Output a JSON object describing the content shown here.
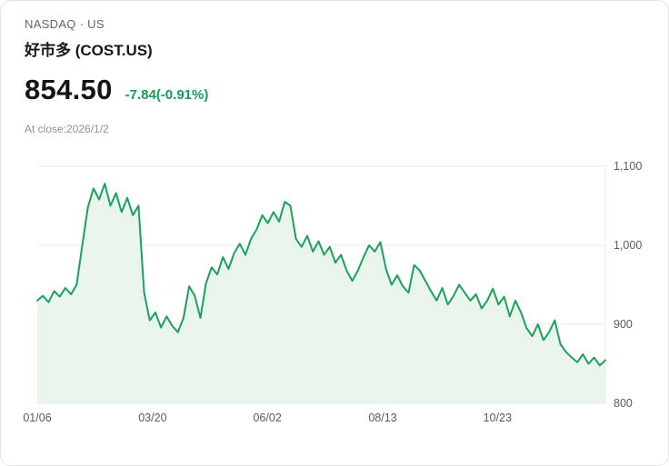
{
  "header": {
    "exchange": "NASDAQ · US",
    "name": "好市多 (COST.US)",
    "price": "854.50",
    "change": "-7.84(-0.91%)",
    "as_of": "At close:2026/1/2"
  },
  "colors": {
    "line": "#1ba15c",
    "fill": "#e9f4ed",
    "change_text": "#129e57",
    "grid": "#eaeaea",
    "axis_text": "#575c64"
  },
  "chart_data": {
    "type": "area",
    "title": "好市多 (COST.US) 1-year price",
    "xlabel": "",
    "ylabel": "",
    "ylim": [
      800,
      1100
    ],
    "grid": true,
    "legend": false,
    "y_ticks": [
      {
        "value": 800,
        "label": "800"
      },
      {
        "value": 900,
        "label": "900"
      },
      {
        "value": 1000,
        "label": "1,000"
      },
      {
        "value": 1100,
        "label": "1,100"
      }
    ],
    "x_ticks": [
      {
        "pos": 0.0,
        "label": "01/06"
      },
      {
        "pos": 0.203,
        "label": "03/20"
      },
      {
        "pos": 0.405,
        "label": "06/02"
      },
      {
        "pos": 0.608,
        "label": "08/13"
      },
      {
        "pos": 0.81,
        "label": "10/23"
      }
    ],
    "values": [
      930,
      936,
      928,
      942,
      935,
      946,
      938,
      950,
      1000,
      1048,
      1072,
      1058,
      1078,
      1050,
      1066,
      1042,
      1060,
      1038,
      1050,
      940,
      905,
      915,
      896,
      910,
      898,
      890,
      908,
      948,
      936,
      908,
      952,
      972,
      963,
      985,
      970,
      990,
      1002,
      988,
      1008,
      1020,
      1038,
      1028,
      1042,
      1030,
      1055,
      1050,
      1008,
      998,
      1012,
      992,
      1005,
      988,
      998,
      978,
      988,
      968,
      955,
      968,
      985,
      1000,
      992,
      1004,
      970,
      950,
      962,
      948,
      940,
      975,
      968,
      955,
      942,
      930,
      946,
      925,
      936,
      950,
      940,
      930,
      938,
      920,
      930,
      945,
      925,
      935,
      910,
      930,
      915,
      895,
      885,
      900,
      880,
      890,
      905,
      875,
      865,
      858,
      852,
      862,
      850,
      858,
      848,
      854.5
    ]
  }
}
